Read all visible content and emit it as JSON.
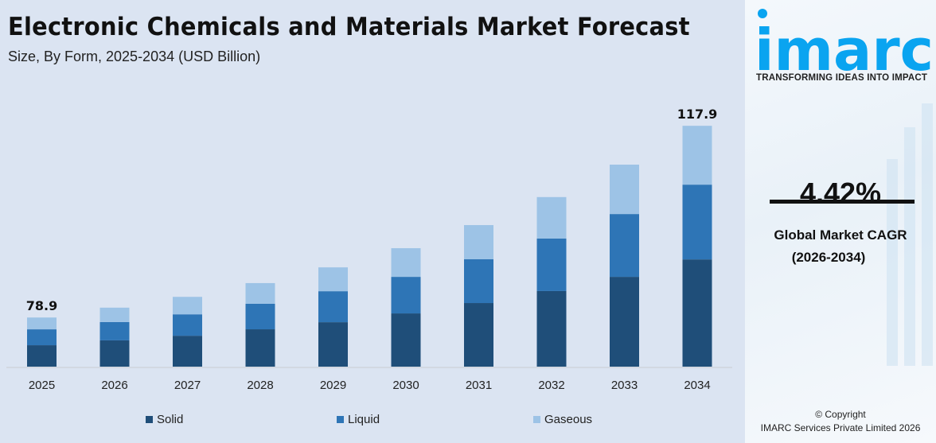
{
  "header": {
    "title": "Electronic Chemicals and Materials Market Forecast",
    "subtitle": "Size, By Form, 2025-2034 (USD Billion)"
  },
  "chart_data": {
    "type": "bar",
    "stacked": true,
    "title": "Electronic Chemicals and Materials Market Forecast",
    "subtitle": "Size, By Form, 2025-2034 (USD Billion)",
    "xlabel": "",
    "ylabel": "",
    "grid": false,
    "legend_position": "bottom",
    "categories": [
      "2025",
      "2026",
      "2027",
      "2028",
      "2029",
      "2030",
      "2031",
      "2032",
      "2033",
      "2034"
    ],
    "series": [
      {
        "name": "Solid",
        "color": "#1f4e79",
        "values": [
          34.4,
          36.1,
          36.8,
          38.4,
          39.9,
          41.8,
          43.9,
          46.1,
          48.9,
          52.5
        ]
      },
      {
        "name": "Liquid",
        "color": "#2e75b6",
        "values": [
          25.5,
          25.1,
          25.5,
          26.2,
          27.8,
          28.7,
          30.2,
          32.0,
          34.2,
          36.6
        ]
      },
      {
        "name": "Gaseous",
        "color": "#9dc3e6",
        "values": [
          19.0,
          19.7,
          20.8,
          21.3,
          21.4,
          22.5,
          23.6,
          25.3,
          26.9,
          28.8
        ]
      }
    ],
    "data_labels": {
      "2025": "78.9",
      "2034": "117.9"
    }
  },
  "sidebar": {
    "logo_text": "imarc",
    "tagline": "TRANSFORMING IDEAS INTO IMPACT",
    "cagr_value": "4.42%",
    "cagr_label": "Global Market CAGR",
    "cagr_period": "(2026-2034)",
    "copyright_line1": "© Copyright",
    "copyright_line2": "IMARC Services Private Limited 2026",
    "brand_color": "#0aa4f0"
  }
}
